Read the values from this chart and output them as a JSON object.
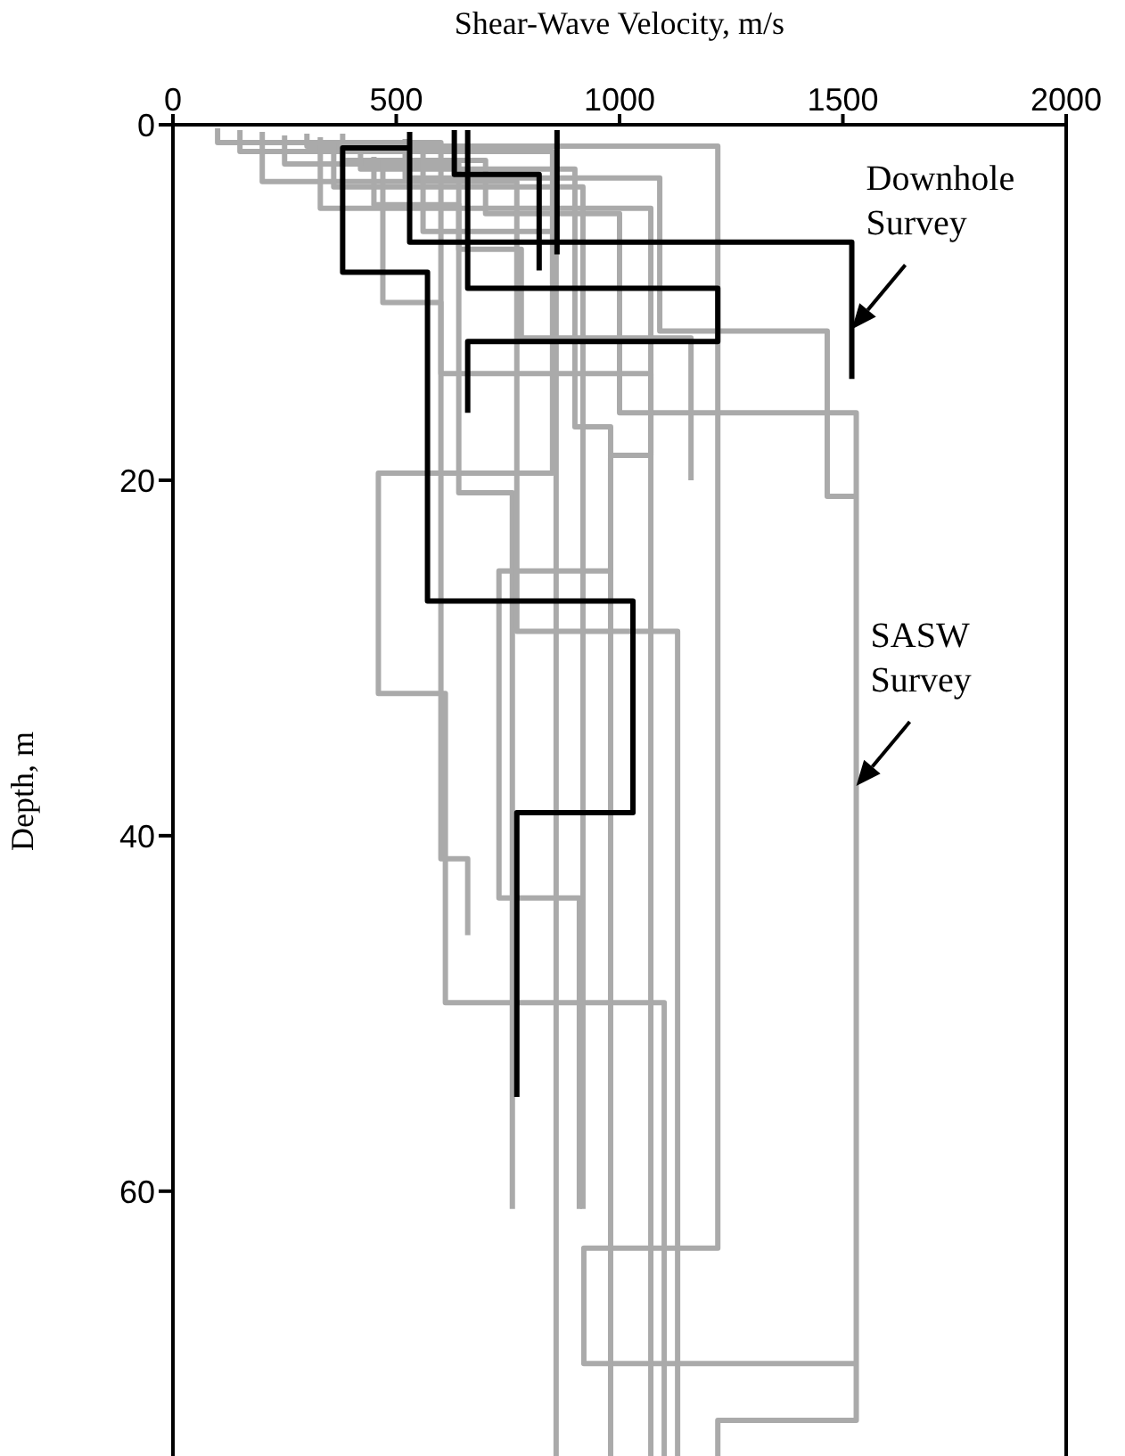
{
  "chart_data": {
    "type": "line",
    "xlabel": "Shear-Wave Velocity, m/s",
    "ylabel": "Depth, m",
    "xlim": [
      0,
      2000
    ],
    "xticks": [
      0,
      500,
      1000,
      1500,
      2000
    ],
    "ylim": [
      75,
      0
    ],
    "yticks": [
      0,
      20,
      40,
      60
    ],
    "marker": "none",
    "line_style": "solid",
    "series": [
      {
        "color": "#aaaaaa",
        "x": [
          380,
          380,
          700,
          700,
          1000,
          1000,
          1530,
          1530,
          1220,
          1220
        ],
        "values": [
          0.5,
          2,
          2,
          5,
          5,
          16.2,
          16.2,
          72.9,
          72.9,
          75
        ]
      },
      {
        "color": "#aaaaaa",
        "x": [
          520,
          520,
          1090,
          1090,
          1465,
          1465,
          1530
        ],
        "values": [
          0.8,
          3,
          3,
          11.6,
          11.6,
          20.9,
          20.9
        ]
      },
      {
        "color": "#aaaaaa",
        "x": [
          300,
          300,
          1220,
          1220,
          920,
          920,
          1530
        ],
        "values": [
          0.5,
          1.2,
          1.2,
          63.2,
          63.2,
          69.7,
          69.7
        ]
      },
      {
        "color": "#aaaaaa",
        "x": [
          150,
          150,
          850,
          850,
          460,
          460,
          610,
          610,
          1100,
          1100
        ],
        "values": [
          0.3,
          1.5,
          1.5,
          19.6,
          19.6,
          32,
          32,
          49.4,
          49.4,
          75
        ]
      },
      {
        "color": "#aaaaaa",
        "x": [
          250,
          250,
          640,
          640,
          760,
          760
        ],
        "values": [
          0.6,
          2.2,
          2.2,
          20.7,
          20.7,
          61
        ]
      },
      {
        "color": "#aaaaaa",
        "x": [
          420,
          420,
          900,
          900,
          980,
          980,
          730,
          730,
          910,
          910
        ],
        "values": [
          1,
          2.5,
          2.5,
          17,
          17,
          25.1,
          25.1,
          43.5,
          43.5,
          61
        ]
      },
      {
        "color": "#aaaaaa",
        "x": [
          200,
          200,
          770,
          770,
          1130,
          1130
        ],
        "values": [
          0.4,
          3.2,
          3.2,
          28.5,
          28.5,
          75
        ]
      },
      {
        "color": "#aaaaaa",
        "x": [
          330,
          330,
          1070,
          1070,
          980,
          980
        ],
        "values": [
          0.7,
          4.7,
          4.7,
          18.6,
          18.6,
          75
        ]
      },
      {
        "color": "#aaaaaa",
        "x": [
          560,
          560,
          858,
          858
        ],
        "values": [
          1.5,
          6,
          6,
          75
        ]
      },
      {
        "color": "#aaaaaa",
        "x": [
          470,
          470,
          600,
          600,
          660,
          660
        ],
        "values": [
          2,
          10,
          10,
          41.3,
          41.3,
          45.6
        ]
      },
      {
        "color": "#aaaaaa",
        "x": [
          100,
          100,
          600,
          600,
          1070,
          1070
        ],
        "values": [
          0.2,
          1,
          1,
          14,
          14,
          75
        ]
      },
      {
        "color": "#aaaaaa",
        "x": [
          450,
          450,
          640,
          640,
          780,
          780,
          1160,
          1160
        ],
        "values": [
          1.8,
          4.5,
          4.5,
          7,
          7,
          12,
          12,
          20
        ]
      },
      {
        "color": "#aaaaaa",
        "x": [
          360,
          360,
          918,
          918
        ],
        "values": [
          1,
          3.5,
          3.5,
          61
        ]
      },
      {
        "color": "#000000",
        "x": [
          530,
          380,
          380,
          570,
          570,
          1030,
          1030,
          770,
          770
        ],
        "values": [
          1.3,
          1.3,
          8.3,
          8.3,
          26.8,
          26.8,
          38.7,
          38.7,
          54.7
        ]
      },
      {
        "color": "#000000",
        "x": [
          530,
          530,
          1520,
          1520
        ],
        "values": [
          0.4,
          6.6,
          6.6,
          14.3
        ]
      },
      {
        "color": "#000000",
        "x": [
          630,
          630,
          820,
          820
        ],
        "values": [
          0.3,
          2.8,
          2.8,
          8.2
        ]
      },
      {
        "color": "#000000",
        "x": [
          660,
          660,
          1220,
          1220,
          660,
          660
        ],
        "values": [
          0.3,
          9.2,
          9.2,
          12.2,
          12.2,
          16.2
        ]
      },
      {
        "color": "#000000",
        "x": [
          860,
          860
        ],
        "values": [
          0.3,
          7.3
        ]
      }
    ],
    "annotations": [
      {
        "text": "Downhole Survey",
        "x": 1520,
        "y": 11.5
      },
      {
        "text": "SASW Survey",
        "x": 1530,
        "y": 37.2
      }
    ]
  }
}
